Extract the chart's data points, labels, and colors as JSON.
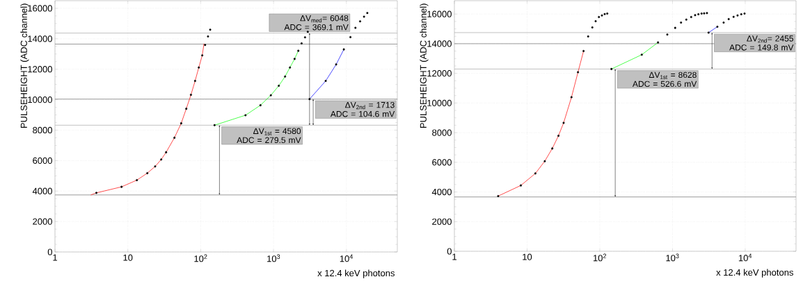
{
  "chart_data": [
    {
      "type": "scatter",
      "xlabel": "x 12.4 keV photons",
      "ylabel": "PULSEHEIGHT (ADC channel)",
      "log": "x",
      "grid": true,
      "xlim": [
        1,
        50000
      ],
      "ylim": [
        0,
        16500
      ],
      "xticks": [
        1,
        10,
        {
          "value": 100,
          "label": "10$^{2}$"
        },
        {
          "value": 1000,
          "label": "10$^{3}$"
        },
        {
          "value": 10000,
          "label": "10$^{4}$"
        }
      ],
      "yticks": [
        0,
        2000,
        4000,
        6000,
        8000,
        10000,
        12000,
        14000,
        16000
      ],
      "series": [
        {
          "marker": "circle",
          "color": "#000000",
          "x": [
            3.7,
            8.2,
            13.3,
            18.5,
            23.7,
            28.7,
            33.5,
            43.6,
            54,
            63.4,
            73.5,
            83.8,
            94.2,
            105,
            115,
            126,
            135,
            155,
            412,
            661,
            918,
            1180,
            1439,
            1679,
            1945,
            2188,
            2427,
            2706,
            2950,
            3119,
            5200,
            7230,
            9220,
            11350,
            13300,
            15420,
            17460,
            19360
          ],
          "values": [
            3881,
            4277,
            4718,
            5175,
            5616,
            6073,
            6545,
            7503,
            8447,
            9406,
            10319,
            11232,
            12115,
            12907,
            13591,
            14155,
            14596,
            8325,
            8980,
            9634,
            10289,
            10913,
            11522,
            12115,
            12678,
            13211,
            13698,
            14094,
            14459,
            10038,
            11232,
            12313,
            13302,
            14109,
            14718,
            15144,
            15449,
            15692
          ]
        },
        {
          "type": "line",
          "color": "#ff0000",
          "x": [
            3.1,
            3.7,
            8.2,
            13.3,
            18.5,
            23.7,
            28.7,
            33.5,
            43.6,
            54,
            63.4,
            73.5,
            83.8,
            94.2,
            105,
            111
          ],
          "values": [
            3745,
            3881,
            4277,
            4718,
            5175,
            5616,
            6073,
            6545,
            7503,
            8447,
            9406,
            10319,
            11232,
            12115,
            12907,
            13683
          ]
        },
        {
          "type": "line",
          "color": "#00ff00",
          "x": [
            155,
            412,
            661,
            918,
            1180,
            1439,
            1679,
            1945,
            2188
          ],
          "values": [
            8325,
            8980,
            9634,
            10289,
            10913,
            11522,
            12115,
            12678,
            13211
          ]
        },
        {
          "type": "line",
          "color": "#0000ff",
          "x": [
            3119,
            5200,
            7230,
            9220
          ],
          "values": [
            10038,
            11232,
            12313,
            13302
          ]
        }
      ],
      "ref_lines": [
        {
          "axis": "y",
          "value": 3745,
          "color": "#808080"
        },
        {
          "axis": "y",
          "value": 8325,
          "color": "#b0b0b0"
        },
        {
          "axis": "y",
          "value": 10038,
          "color": "#808080"
        },
        {
          "axis": "y",
          "value": 13650,
          "color": "#808080"
        },
        {
          "axis": "y",
          "value": 14373,
          "color": "#b0b0b0"
        }
      ],
      "annotations": [
        {
          "text": "ΔV$_{1st}$ = 4580 ADC = 279.5 mV",
          "x": 181,
          "y": 8325
        },
        {
          "text": "ΔV$_{2nd}$ = 1713 ADC = 104.6 mV",
          "x": 3500,
          "y": 10038
        },
        {
          "text": "ΔV$_{med}$= 6048 ADC = 369.1 mV",
          "x": 3119,
          "y": 14373
        }
      ]
    },
    {
      "type": "scatter",
      "xlabel": "x 12.4 keV photons",
      "ylabel": "PULSEHEIGHT (ADC channel)",
      "log": "x",
      "grid": true,
      "xlim": [
        1,
        50000
      ],
      "ylim": [
        0,
        16900
      ],
      "xticks": [
        1,
        10,
        {
          "value": 100,
          "label": "10$^{2}$"
        },
        {
          "value": 1000,
          "label": "10$^{3}$"
        },
        {
          "value": 10000,
          "label": "10$^{4}$"
        }
      ],
      "yticks": [
        0,
        2000,
        4000,
        6000,
        8000,
        10000,
        12000,
        14000,
        16000
      ],
      "series": [
        {
          "marker": "circle",
          "color": "#000000",
          "x": [
            4.0,
            8.2,
            13.0,
            17.5,
            22.2,
            27.0,
            31.8,
            40.8,
            50.1,
            59.8,
            69.2,
            79.0,
            87.7,
            97.2,
            107,
            116.7,
            126.6,
            144.5,
            378,
            632,
            848,
            1088,
            1309,
            1549,
            1807,
            2047,
            2270,
            2512,
            2725,
            2977,
            3133,
            4140,
            5050,
            5930,
            6920,
            7850,
            8830,
            9790
          ],
          "values": [
            3724,
            4440,
            5250,
            6076,
            6933,
            7790,
            8662,
            10392,
            12075,
            13508,
            14489,
            15097,
            15517,
            15798,
            15907,
            16000,
            16031,
            12292,
            13258,
            14084,
            14614,
            15066,
            15424,
            15627,
            15798,
            15923,
            15985,
            16031,
            16047,
            16063,
            14747,
            15144,
            15424,
            15658,
            15813,
            15907,
            15985,
            16031
          ]
        },
        {
          "type": "line",
          "color": "#ff0000",
          "x": [
            4.0,
            8.2,
            13.0,
            17.5,
            22.2,
            27.0,
            31.8,
            40.8,
            50.1,
            59.8
          ],
          "values": [
            3724,
            4440,
            5250,
            6076,
            6933,
            7790,
            8662,
            10392,
            12075,
            13508
          ]
        },
        {
          "type": "line",
          "color": "#00ff00",
          "x": [
            144.5,
            378,
            632
          ],
          "values": [
            12292,
            13258,
            14084
          ]
        },
        {
          "type": "line",
          "color": "#0000ff",
          "x": [
            3133,
            4140
          ],
          "values": [
            14747,
            15144
          ]
        }
      ],
      "ref_lines": [
        {
          "axis": "y",
          "value": 3664,
          "color": "#808080"
        },
        {
          "axis": "y",
          "value": 12292,
          "color": "#b0b0b0"
        },
        {
          "axis": "y",
          "value": 14000,
          "color": "#808080"
        },
        {
          "axis": "y",
          "value": 14747,
          "color": "#b0b0b0"
        }
      ],
      "annotations": [
        {
          "text": "ΔV$_{1st}$ = 8628 ADC = 526.6 mV",
          "x": 163,
          "y": 12292
        },
        {
          "text": "ΔV$_{2nd}$= 2455 ADC = 149.8 mV",
          "x": 3500,
          "y": 14747
        }
      ]
    }
  ]
}
